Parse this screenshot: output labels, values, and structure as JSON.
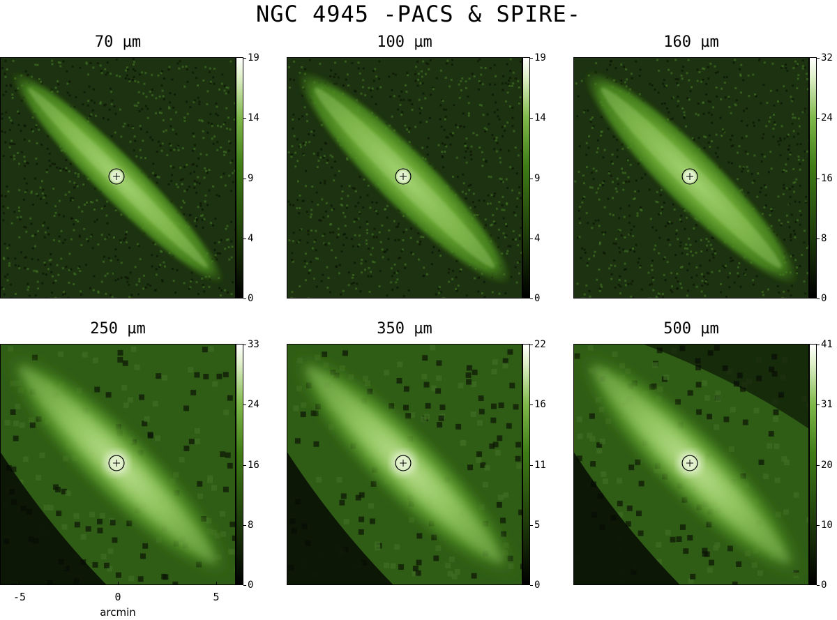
{
  "title": "NGC 4945 -PACS & SPIRE-",
  "panels": [
    {
      "label": "70 µm",
      "ticks": [
        "0",
        "4",
        "9",
        "14",
        "19"
      ],
      "morph": "clumpy"
    },
    {
      "label": "100 µm",
      "ticks": [
        "0",
        "4",
        "9",
        "14",
        "19"
      ],
      "morph": "smooth"
    },
    {
      "label": "160 µm",
      "ticks": [
        "0",
        "8",
        "16",
        "24",
        "32"
      ],
      "morph": "smooth"
    },
    {
      "label": "250 µm",
      "ticks": [
        "0",
        "8",
        "16",
        "24",
        "33"
      ],
      "morph": "broad"
    },
    {
      "label": "350 µm",
      "ticks": [
        "0",
        "5",
        "11",
        "16",
        "22"
      ],
      "morph": "broad"
    },
    {
      "label": "500 µm",
      "ticks": [
        "0",
        "10",
        "20",
        "31",
        "41"
      ],
      "morph": "broad"
    }
  ],
  "x_axis": {
    "label": "arcmin",
    "range": [
      -6,
      6
    ],
    "ticks": [
      {
        "value": -5,
        "label": "-5"
      },
      {
        "value": 0,
        "label": "0"
      },
      {
        "value": 5,
        "label": "5"
      }
    ]
  },
  "colormap": [
    "#000000",
    "#1d3a0a",
    "#3f7c16",
    "#7fb84a",
    "#dff0c8",
    "#ffffff"
  ]
}
